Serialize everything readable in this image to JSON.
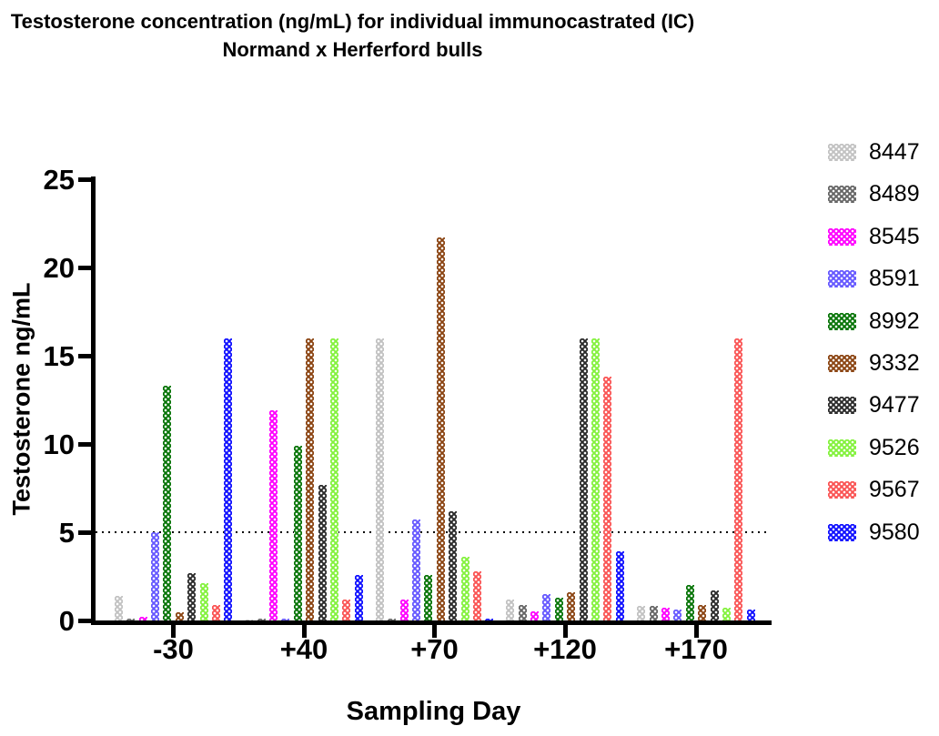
{
  "chart_data": {
    "type": "bar",
    "title_line1": "Testosterone concentration (ng/mL) for individual immunocastrated (IC)",
    "title_line2": "Normand x Herferford bulls",
    "xlabel": "Sampling Day",
    "ylabel": "Testosterone ng/mL",
    "ylim": [
      0,
      25
    ],
    "yticks": [
      25,
      20,
      15,
      10,
      5,
      0
    ],
    "categories": [
      "-30",
      "+40",
      "+70",
      "+120",
      "+170"
    ],
    "reference_line_y": 5,
    "grid": "off",
    "legend_position": "right",
    "series": [
      {
        "name": "8447",
        "color": "#c2c2c2",
        "values": [
          1.4,
          0.05,
          16,
          1.2,
          0.8
        ]
      },
      {
        "name": "8489",
        "color": "#666666",
        "values": [
          0.1,
          0.1,
          0.1,
          0.9,
          0.8
        ]
      },
      {
        "name": "8545",
        "color": "#ff00ff",
        "values": [
          0.2,
          11.9,
          1.2,
          0.5,
          0.7
        ]
      },
      {
        "name": "8591",
        "color": "#6659ff",
        "values": [
          5.0,
          0.1,
          5.7,
          1.5,
          0.6
        ]
      },
      {
        "name": "8992",
        "color": "#097509",
        "values": [
          13.3,
          9.9,
          2.6,
          1.3,
          2.0
        ]
      },
      {
        "name": "9332",
        "color": "#8b4513",
        "values": [
          0.45,
          16,
          21.7,
          1.6,
          0.9
        ]
      },
      {
        "name": "9477",
        "color": "#2b2b2b",
        "values": [
          2.7,
          7.7,
          6.2,
          16,
          1.7
        ]
      },
      {
        "name": "9526",
        "color": "#84f23e",
        "values": [
          2.1,
          16,
          3.6,
          16,
          0.7
        ]
      },
      {
        "name": "9567",
        "color": "#fa5555",
        "values": [
          0.9,
          1.2,
          2.8,
          13.8,
          16
        ]
      },
      {
        "name": "9580",
        "color": "#1111ff",
        "values": [
          16,
          2.6,
          0.1,
          3.9,
          0.6
        ]
      }
    ]
  }
}
